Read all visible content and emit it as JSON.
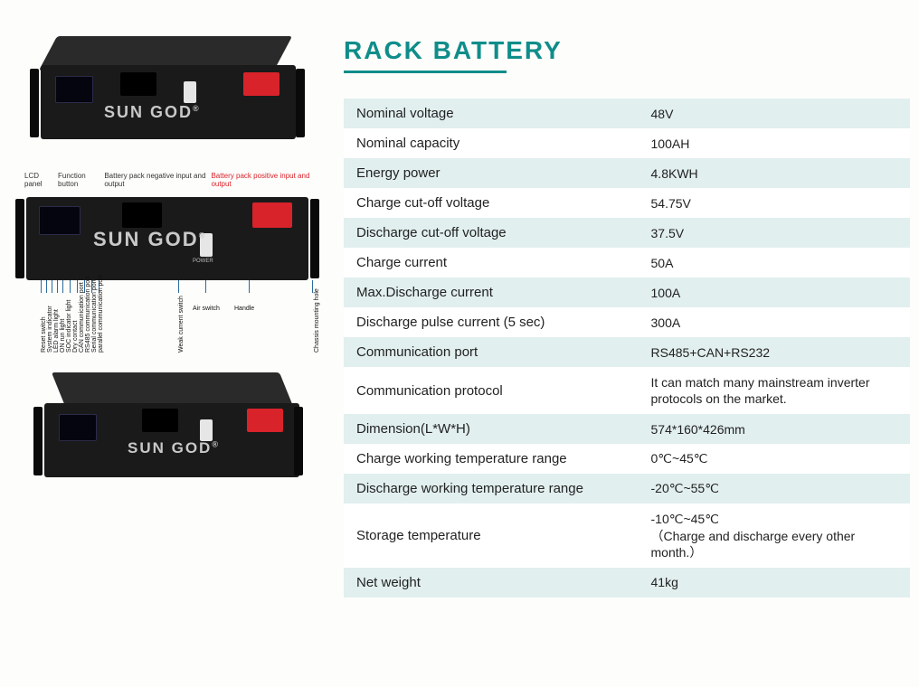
{
  "title": "RACK BATTERY",
  "title_color": "#0f8d8a",
  "underline_color": "#0f8d8a",
  "brand": "SUN GOD",
  "table": {
    "row_bg_alt": "#e1efee",
    "row_bg": "#ffffff",
    "rows": [
      {
        "label": "Nominal voltage",
        "value": "48V"
      },
      {
        "label": "Nominal capacity",
        "value": "100AH"
      },
      {
        "label": "Energy power",
        "value": "4.8KWH"
      },
      {
        "label": "Charge cut-off voltage",
        "value": "54.75V"
      },
      {
        "label": "Discharge cut-off voltage",
        "value": "37.5V"
      },
      {
        "label": "Charge current",
        "value": "50A"
      },
      {
        "label": "Max.Discharge current",
        "value": "100A"
      },
      {
        "label": "Discharge pulse current (5 sec)",
        "value": "300A"
      },
      {
        "label": "Communication port",
        "value": "RS485+CAN+RS232"
      },
      {
        "label": "Communication protocol",
        "value": "It can match many mainstream inverter protocols on the market.",
        "small": true
      },
      {
        "label": "Dimension(L*W*H)",
        "value": "574*160*426mm"
      },
      {
        "label": "Charge working temperature range",
        "value": "0℃~45℃"
      },
      {
        "label": "Discharge working temperature range",
        "value": "-20℃~55℃"
      },
      {
        "label": "Storage temperature",
        "value": "-10℃~45℃\n（Charge and discharge every other month.）",
        "small": true
      },
      {
        "label": "Net weight",
        "value": "41kg"
      }
    ]
  },
  "diagram_top_labels": [
    "LCD panel",
    "Function button",
    "Battery pack negative input and output",
    "Battery pack positive input and output"
  ],
  "diagram_bottom_vertical": [
    "Reset switch",
    "System indicator",
    "LED alarm light",
    "ON run light",
    "SOC indicator light",
    "Dry contact",
    "CAN communication port",
    "RS485 communication port",
    "Serial communication port",
    "parallel communication port"
  ],
  "diagram_bottom_h": [
    {
      "text": "Weak current switch",
      "rot": true
    },
    {
      "text": "Air switch"
    },
    {
      "text": "Handle"
    },
    {
      "text": "Chassis mounting hole",
      "rot": true
    }
  ]
}
